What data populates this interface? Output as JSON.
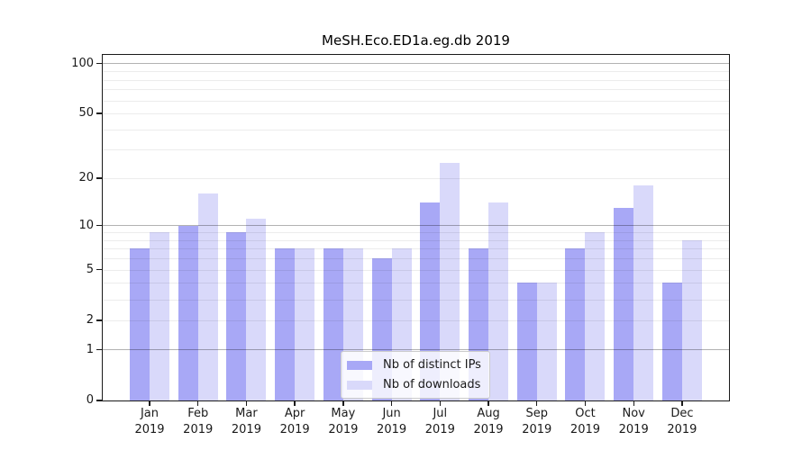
{
  "title": "MeSH.Eco.ED1a.eg.db 2019",
  "legend": {
    "items": [
      {
        "label": "Nb of distinct IPs",
        "key": "ips"
      },
      {
        "label": "Nb of downloads",
        "key": "downloads"
      }
    ]
  },
  "y_axis": {
    "tick_values": [
      100,
      50,
      20,
      10,
      5,
      2,
      1,
      0
    ],
    "grid_major": [
      1,
      10,
      100
    ],
    "grid_minor": [
      2,
      3,
      4,
      5,
      6,
      7,
      8,
      9,
      20,
      30,
      40,
      50,
      60,
      70,
      80,
      90
    ]
  },
  "x_axis": {
    "year": "2019",
    "months": [
      "Jan",
      "Feb",
      "Mar",
      "Apr",
      "May",
      "Jun",
      "Jul",
      "Aug",
      "Sep",
      "Oct",
      "Nov",
      "Dec"
    ]
  },
  "colors": {
    "ips": "#a8a8f6",
    "downloads": "#d9d9fa",
    "grid_major": "#b0b0b0",
    "grid_minor": "#ececec",
    "axis": "#1a1a1a",
    "legend_border": "#cccccc"
  },
  "chart_data": {
    "type": "bar",
    "title": "MeSH.Eco.ED1a.eg.db 2019",
    "categories": [
      "Jan 2019",
      "Feb 2019",
      "Mar 2019",
      "Apr 2019",
      "May 2019",
      "Jun 2019",
      "Jul 2019",
      "Aug 2019",
      "Sep 2019",
      "Oct 2019",
      "Nov 2019",
      "Dec 2019"
    ],
    "series": [
      {
        "name": "Nb of distinct IPs",
        "key": "ips",
        "values": [
          7,
          10,
          9,
          7,
          7,
          6,
          14,
          7,
          4,
          7,
          13,
          4
        ]
      },
      {
        "name": "Nb of downloads",
        "key": "downloads",
        "values": [
          9,
          16,
          11,
          7,
          7,
          7,
          25,
          14,
          4,
          9,
          18,
          8
        ]
      }
    ],
    "yscale": "log1p",
    "y_ticks": [
      0,
      1,
      2,
      5,
      10,
      20,
      50,
      100
    ],
    "ylim": [
      0,
      100
    ],
    "grid": true,
    "legend_position": "lower center"
  }
}
